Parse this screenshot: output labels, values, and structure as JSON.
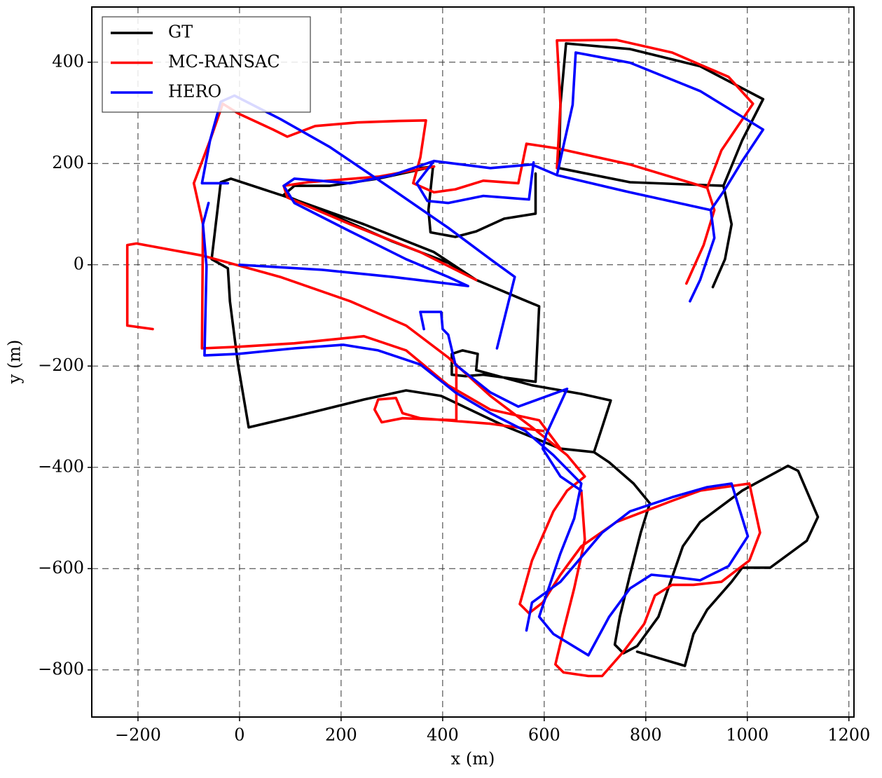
{
  "chart_data": {
    "type": "line",
    "xlabel": "x (m)",
    "ylabel": "y (m)",
    "xlim": [
      -291,
      1210
    ],
    "ylim": [
      -893,
      509
    ],
    "xticks": [
      {
        "value": -200,
        "label": "−200"
      },
      0,
      200,
      400,
      600,
      800,
      1000,
      1200
    ],
    "yticks": [
      {
        "value": -800,
        "label": "−800"
      },
      {
        "value": -600,
        "label": "−600"
      },
      {
        "value": -400,
        "label": "−400"
      },
      {
        "value": -200,
        "label": "−200"
      },
      0,
      200,
      400
    ],
    "grid": true,
    "legend": "upper left",
    "series": [
      {
        "name": "GT",
        "color": "#000000",
        "x": [
          383,
          273,
          177,
          108,
          87,
          177,
          301,
          411,
          466,
          549,
          590,
          583,
          480,
          445,
          418,
          418,
          439,
          469,
          466,
          576,
          673,
          731,
          714,
          698,
          728,
          776,
          808,
          790,
          769,
          749,
          739,
          756,
          783,
          825,
          873,
          907,
          990,
          1080,
          1100,
          1139,
          1117,
          1045,
          990,
          969,
          921,
          894,
          877,
          783,
          null,
          466,
          383,
          245,
          108,
          -17,
          -37,
          -55,
          -23,
          -19,
          -3,
          18,
          108,
          245,
          328,
          397,
          521,
          632,
          698,
          null,
          932,
          956,
          969,
          953,
          990,
          1031,
          907,
          769,
          643,
          632,
          629,
          769,
          953,
          null,
          583,
          583,
          521,
          466,
          425,
          376,
          372,
          381,
          356
        ],
        "y": [
          194,
          170,
          156,
          156,
          138,
          101,
          46,
          4,
          -30,
          -65,
          -82,
          -231,
          -217,
          -220,
          -217,
          -176,
          -169,
          -176,
          -208,
          -238,
          -255,
          -268,
          -321,
          -370,
          -390,
          -432,
          -471,
          -529,
          -612,
          -695,
          -750,
          -767,
          -753,
          -695,
          -556,
          -508,
          -446,
          -397,
          -407,
          -498,
          -545,
          -598,
          -598,
          -626,
          -681,
          -729,
          -792,
          -764,
          null,
          -30,
          25,
          80,
          129,
          170,
          163,
          11,
          -7,
          -72,
          -197,
          -321,
          -300,
          -266,
          -248,
          -259,
          -318,
          -363,
          -370,
          null,
          -44,
          11,
          80,
          156,
          246,
          327,
          392,
          426,
          437,
          316,
          191,
          163,
          156,
          null,
          180,
          101,
          91,
          66,
          55,
          64,
          108,
          194,
          191
        ]
      },
      {
        "name": "MC-RANSAC",
        "color": "#ff0000",
        "x": [
          -171,
          -221,
          -221,
          -203,
          -72,
          80,
          218,
          328,
          411,
          494,
          576,
          645,
          680,
          645,
          618,
          576,
          552,
          570,
          597,
          632,
          673,
          742,
          852,
          907,
          1004,
          1025,
          1004,
          949,
          894,
          852,
          818,
          797,
          756,
          714,
          687,
          638,
          622,
          638,
          659,
          680,
          673,
          null,
          632,
          590,
          494,
          411,
          328,
          245,
          108,
          -3,
          -74,
          -72,
          -90,
          -58,
          -33,
          -3,
          66,
          94,
          149,
          232,
          314,
          367,
          356,
          342,
          383,
          425,
          480,
          549,
          565,
          625,
          769,
          921,
          935,
          914,
          880,
          null,
          921,
          949,
          1011,
          963,
          852,
          742,
          625,
          632,
          625,
          null,
          427,
          427,
          321,
          280,
          266,
          273,
          308,
          321,
          356,
          494,
          597,
          null,
          466,
          356,
          218,
          94,
          87,
          135,
          273,
          383
        ],
        "y": [
          -127,
          -120,
          39,
          42,
          18,
          -24,
          -72,
          -120,
          -183,
          -259,
          -321,
          -376,
          -418,
          -446,
          -487,
          -584,
          -670,
          -688,
          -667,
          -612,
          -556,
          -508,
          -466,
          -446,
          -432,
          -529,
          -584,
          -626,
          -632,
          -632,
          -653,
          -709,
          -764,
          -812,
          -812,
          -805,
          -789,
          -722,
          -639,
          -543,
          -446,
          null,
          -363,
          -307,
          -286,
          -238,
          -169,
          -141,
          -155,
          -162,
          -165,
          80,
          161,
          246,
          318,
          299,
          267,
          253,
          274,
          281,
          284,
          285,
          212,
          161,
          143,
          149,
          166,
          161,
          239,
          230,
          198,
          152,
          108,
          39,
          -37,
          null,
          152,
          226,
          318,
          371,
          419,
          444,
          443,
          316,
          191,
          null,
          -197,
          -307,
          -303,
          -311,
          -286,
          -266,
          -263,
          -293,
          -303,
          -314,
          -328,
          null,
          -30,
          25,
          80,
          133,
          156,
          163,
          174,
          194
        ]
      },
      {
        "name": "HERO",
        "color": "#0000ff",
        "x": [
          -23,
          -74,
          -58,
          -37,
          -10,
          80,
          177,
          301,
          411,
          494,
          542,
          507,
          null,
          0,
          163,
          301,
          450,
          411,
          328,
          218,
          108,
          87,
          108,
          218,
          301,
          383,
          494,
          576,
          625,
          769,
          928,
          935,
          907,
          887,
          null,
          928,
          956,
          990,
          1031,
          907,
          769,
          662,
          656,
          625,
          null,
          383,
          349,
          370,
          411,
          480,
          570,
          579,
          null,
          -61,
          -72,
          -65,
          -69,
          -3,
          108,
          204,
          273,
          356,
          425,
          494,
          563,
          618,
          673,
          659,
          632,
          604,
          590,
          618,
          687,
          728,
          769,
          811,
          852,
          907,
          963,
          1001,
          969,
          921,
          852,
          769,
          714,
          632,
          576,
          565,
          null,
          363,
          356,
          397,
          400,
          411,
          425,
          494,
          549,
          645,
          604,
          597,
          632,
          673
        ],
        "y": [
          161,
          161,
          246,
          322,
          334,
          288,
          233,
          149,
          73,
          11,
          -24,
          -165,
          null,
          0,
          -10,
          -24,
          -42,
          -24,
          11,
          66,
          122,
          156,
          170,
          161,
          177,
          205,
          191,
          198,
          177,
          143,
          108,
          53,
          -30,
          -72,
          null,
          108,
          149,
          205,
          267,
          343,
          399,
          419,
          316,
          177,
          null,
          205,
          161,
          126,
          122,
          136,
          129,
          202,
          null,
          122,
          80,
          -3,
          -179,
          -176,
          -165,
          -158,
          -169,
          -197,
          -252,
          -293,
          -328,
          -376,
          -432,
          -501,
          -570,
          -653,
          -695,
          -729,
          -771,
          -695,
          -639,
          -612,
          -616,
          -623,
          -595,
          -536,
          -432,
          -439,
          -459,
          -487,
          -529,
          -626,
          -667,
          -722,
          null,
          -127,
          -93,
          -93,
          -127,
          -138,
          -197,
          -252,
          -280,
          -245,
          -335,
          -363,
          -418,
          -446
        ]
      }
    ]
  }
}
